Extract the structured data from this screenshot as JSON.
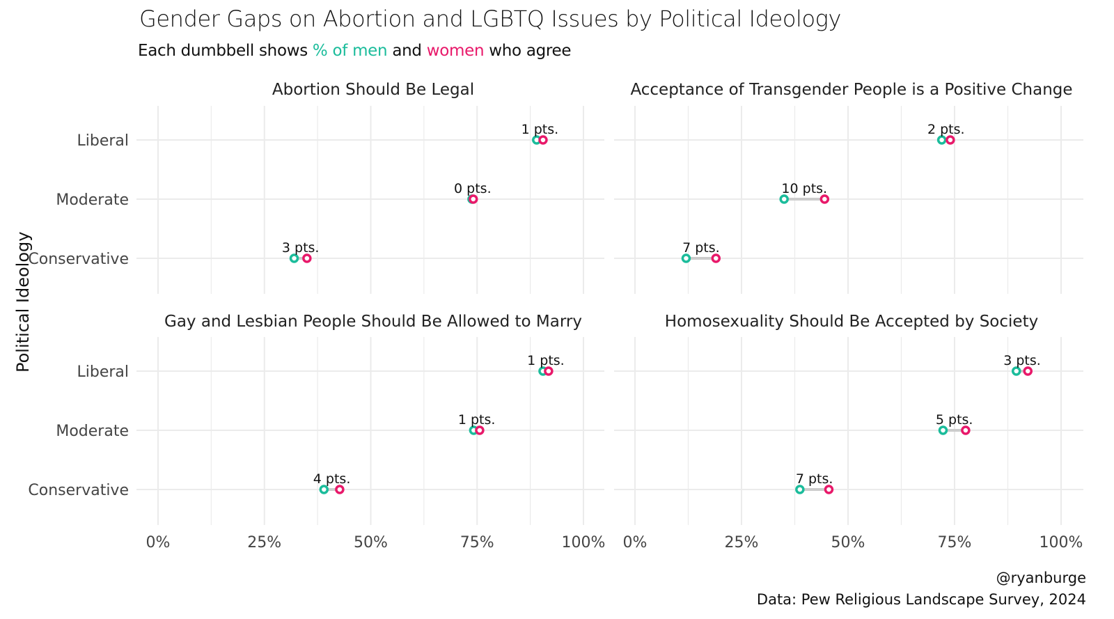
{
  "title": "Gender Gaps on Abortion and LGBTQ Issues by Political Ideology",
  "subtitle": {
    "prefix": "Each dumbbell shows ",
    "men": "% of men",
    "middle": " and ",
    "women": "women",
    "suffix": " who agree"
  },
  "ylabel": "Political Ideology",
  "caption": {
    "line1": "@ryanburge",
    "line2": "Data: Pew Religious Landscape Survey, 2024"
  },
  "colors": {
    "men": "#1bbc9b",
    "women": "#e8196a",
    "connector": "#cccccc",
    "grid": "#ebebeb"
  },
  "chart_data": {
    "type": "dumbbell",
    "categories": [
      "Liberal",
      "Moderate",
      "Conservative"
    ],
    "x_ticks": [
      "0%",
      "25%",
      "50%",
      "75%",
      "100%"
    ],
    "xlim": [
      0,
      100
    ],
    "grid": true,
    "gap_suffix": " pts.",
    "panels": [
      {
        "title": "Abortion Should Be Legal",
        "rows": [
          {
            "category": "Liberal",
            "men": 89,
            "women": 90.5,
            "gap": 1
          },
          {
            "category": "Moderate",
            "men": 73.8,
            "women": 74.1,
            "gap": 0
          },
          {
            "category": "Conservative",
            "men": 32,
            "women": 35,
            "gap": 3
          }
        ]
      },
      {
        "title": "Acceptance of Transgender People is a Positive Change",
        "rows": [
          {
            "category": "Liberal",
            "men": 72,
            "women": 74,
            "gap": 2
          },
          {
            "category": "Moderate",
            "men": 35,
            "women": 44.5,
            "gap": 10
          },
          {
            "category": "Conservative",
            "men": 12,
            "women": 19,
            "gap": 7
          }
        ]
      },
      {
        "title": "Gay and Lesbian People Should Be Allowed to Marry",
        "rows": [
          {
            "category": "Liberal",
            "men": 90.5,
            "women": 91.8,
            "gap": 1
          },
          {
            "category": "Moderate",
            "men": 74.2,
            "women": 75.6,
            "gap": 1
          },
          {
            "category": "Conservative",
            "men": 39,
            "women": 42.7,
            "gap": 4
          }
        ]
      },
      {
        "title": "Homosexuality Should Be Accepted by Society",
        "rows": [
          {
            "category": "Liberal",
            "men": 89.5,
            "women": 92.2,
            "gap": 3
          },
          {
            "category": "Moderate",
            "men": 72.3,
            "women": 77.6,
            "gap": 5
          },
          {
            "category": "Conservative",
            "men": 38.7,
            "women": 45.5,
            "gap": 7
          }
        ]
      }
    ]
  }
}
